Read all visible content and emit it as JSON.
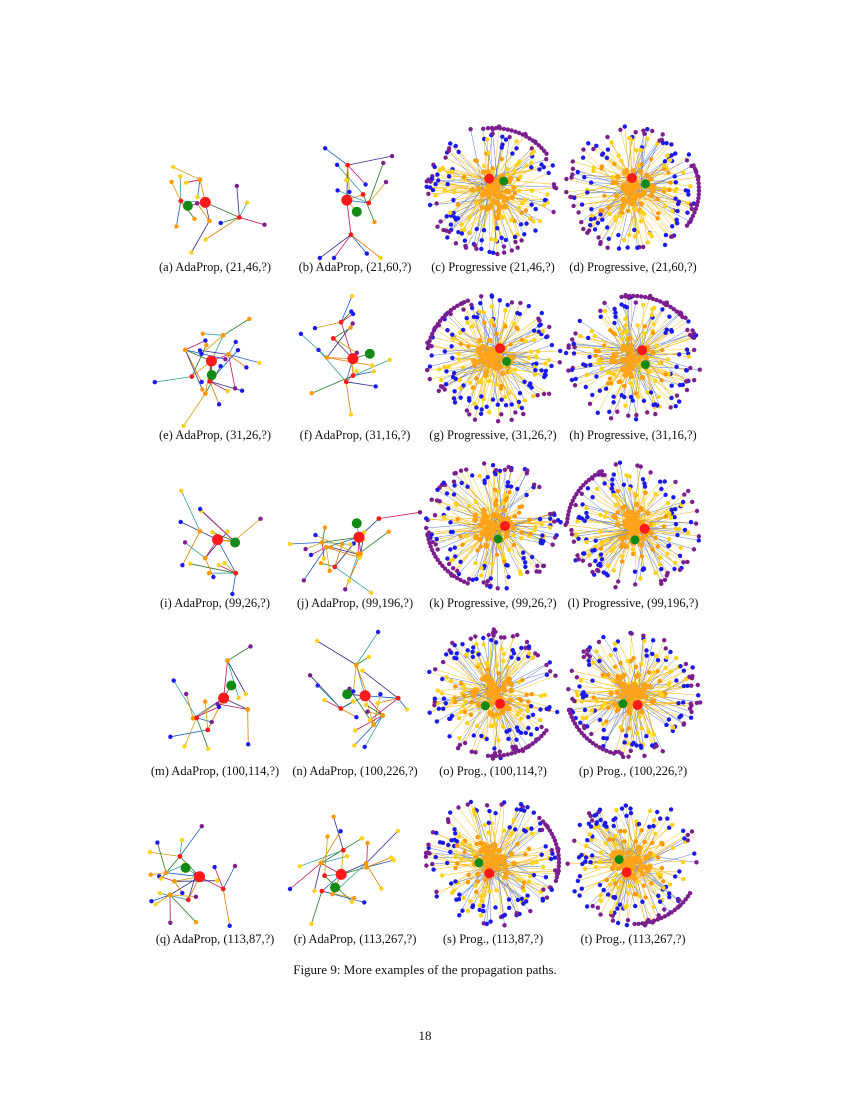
{
  "figure": {
    "caption": "Figure 9: More examples of the propagation paths.",
    "node_colors": {
      "query": "#ff1a1a",
      "answer": "#138a13",
      "hop1": "#ff9900",
      "hop2": "#ffd21a",
      "hop3": "#1a1aee",
      "hop4": "#7b1f8f"
    },
    "panels": [
      {
        "caption": "(a) AdaProp, (21,46,?)",
        "kind": "adaprop"
      },
      {
        "caption": "(b) AdaProp, (21,60,?)",
        "kind": "adaprop"
      },
      {
        "caption": "(c) Progressive (21,46,?)",
        "kind": "progressive"
      },
      {
        "caption": "(d) Progressive, (21,60,?)",
        "kind": "progressive"
      },
      {
        "caption": "(e) AdaProp, (31,26,?)",
        "kind": "adaprop"
      },
      {
        "caption": "(f) AdaProp, (31,16,?)",
        "kind": "adaprop"
      },
      {
        "caption": "(g) Progressive, (31,26,?)",
        "kind": "progressive"
      },
      {
        "caption": "(h) Progressive, (31,16,?)",
        "kind": "progressive"
      },
      {
        "caption": "(i) AdaProp, (99,26,?)",
        "kind": "adaprop"
      },
      {
        "caption": "(j) AdaProp, (99,196,?)",
        "kind": "adaprop"
      },
      {
        "caption": "(k) Progressive, (99,26,?)",
        "kind": "progressive"
      },
      {
        "caption": "(l) Progressive, (99,196,?)",
        "kind": "progressive"
      },
      {
        "caption": "(m) AdaProp, (100,114,?)",
        "kind": "adaprop"
      },
      {
        "caption": "(n) AdaProp, (100,226,?)",
        "kind": "adaprop"
      },
      {
        "caption": "(o) Prog., (100,114,?)",
        "kind": "progressive"
      },
      {
        "caption": "(p) Prog., (100,226,?)",
        "kind": "progressive"
      },
      {
        "caption": "(q) AdaProp, (113,87,?)",
        "kind": "adaprop"
      },
      {
        "caption": "(r) AdaProp, (113,267,?)",
        "kind": "adaprop"
      },
      {
        "caption": "(s) Prog., (113,87,?)",
        "kind": "progressive"
      },
      {
        "caption": "(t) Prog., (113,267,?)",
        "kind": "progressive"
      }
    ]
  },
  "page": {
    "number": "18"
  }
}
